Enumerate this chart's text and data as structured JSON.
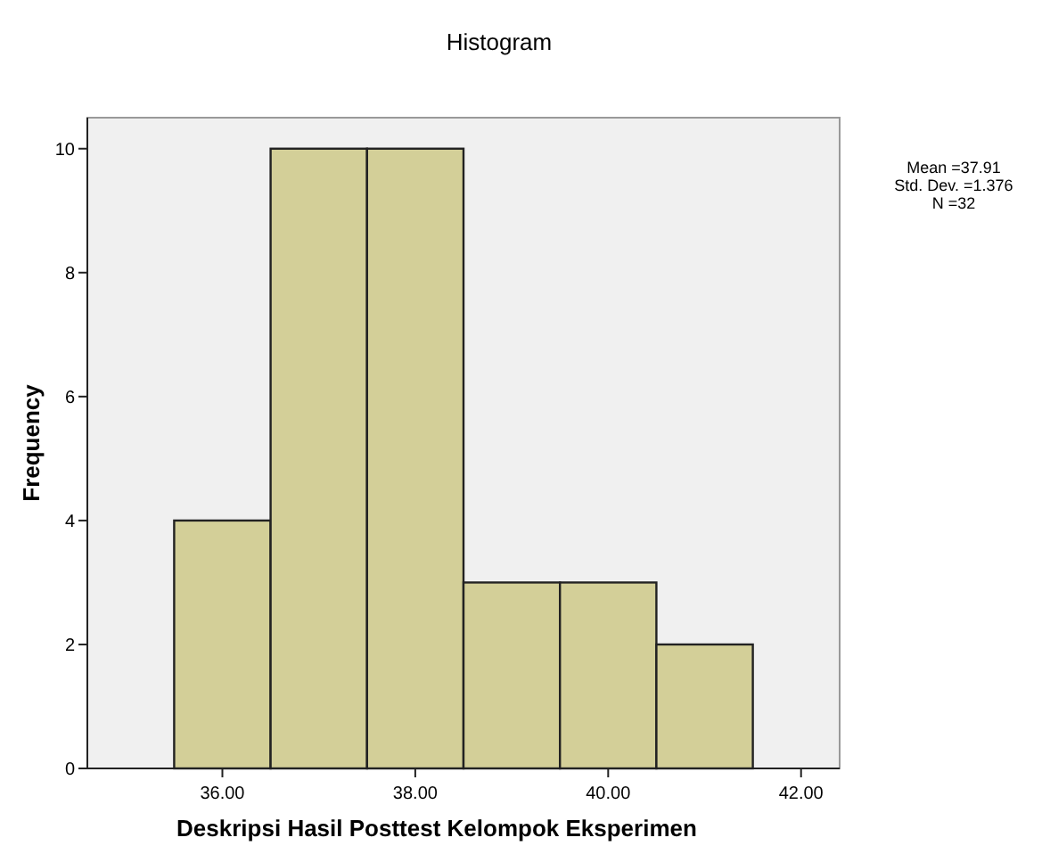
{
  "chart_data": {
    "type": "histogram",
    "title": "Histogram",
    "xlabel": "Deskripsi Hasil Posttest Kelompok Eksperimen",
    "ylabel": "Frequency",
    "bins": [
      35.5,
      36.5,
      37.5,
      38.5,
      39.5,
      40.5,
      41.5
    ],
    "values": [
      4,
      10,
      10,
      3,
      3,
      2
    ],
    "color": "#d3cf98",
    "xlim": [
      34.6,
      42.4
    ],
    "xticks": [
      {
        "value": 36,
        "label": "36.00"
      },
      {
        "value": 38,
        "label": "38.00"
      },
      {
        "value": 40,
        "label": "40.00"
      },
      {
        "value": 42,
        "label": "42.00"
      }
    ],
    "ylim": [
      0,
      10.5
    ],
    "yticks": [
      0,
      2,
      4,
      6,
      8,
      10
    ],
    "grid": false,
    "annotations": [
      "Mean =37.91",
      "Std. Dev. =1.376",
      "N =32"
    ]
  }
}
